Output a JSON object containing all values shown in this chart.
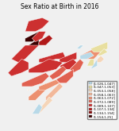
{
  "title": "Sex Ratio at Birth in 2016",
  "title_fontsize": 5.5,
  "legend_labels": [
    "[1.026,1.047]",
    "(1.047,1.053]",
    "(1.053,1.058]",
    "(1.058,1.063]",
    "(1.063,1.072]",
    "(1.072,1.089]",
    "(1.089,1.107]",
    "(1.107,1.134]",
    "(1.134,1.154]",
    "(1.154,1.25]"
  ],
  "legend_colors": [
    "#b8d9e8",
    "#e8dfa0",
    "#f5d5b8",
    "#f2b89a",
    "#ec9070",
    "#e06050",
    "#cc3030",
    "#b01818",
    "#880808",
    "#3a0000"
  ],
  "state_colors": {
    "Jammu and Kashmir": "#cc3030",
    "Himachal Pradesh": "#cc3030",
    "Punjab": "#3a0000",
    "Uttarakhand": "#b01818",
    "Haryana": "#3a0000",
    "Delhi": "#b01818",
    "Rajasthan": "#cc3030",
    "Uttar Pradesh": "#cc3030",
    "Bihar": "#cc3030",
    "Sikkim": "#b8d9e8",
    "Arunachal Pradesh": "#e8dfa0",
    "Nagaland": "#e8dfa0",
    "Manipur": "#f5d5b8",
    "Mizoram": "#b8d9e8",
    "Tripura": "#e8dfa0",
    "Meghalaya": "#b8d9e8",
    "Assam": "#ec9070",
    "West Bengal": "#e06050",
    "Jharkhand": "#cc3030",
    "Odisha": "#e06050",
    "Chhattisgarh": "#e06050",
    "Madhya Pradesh": "#cc3030",
    "Gujarat": "#cc3030",
    "Maharashtra": "#e06050",
    "Andhra Pradesh": "#f2b89a",
    "Karnataka": "#ec9070",
    "Goa": "#f5d5b8",
    "Kerala": "#b8d9e8",
    "Tamil Nadu": "#f5d5b8",
    "Telangana": "#ec9070"
  },
  "figsize": [
    1.5,
    1.65
  ],
  "dpi": 100
}
